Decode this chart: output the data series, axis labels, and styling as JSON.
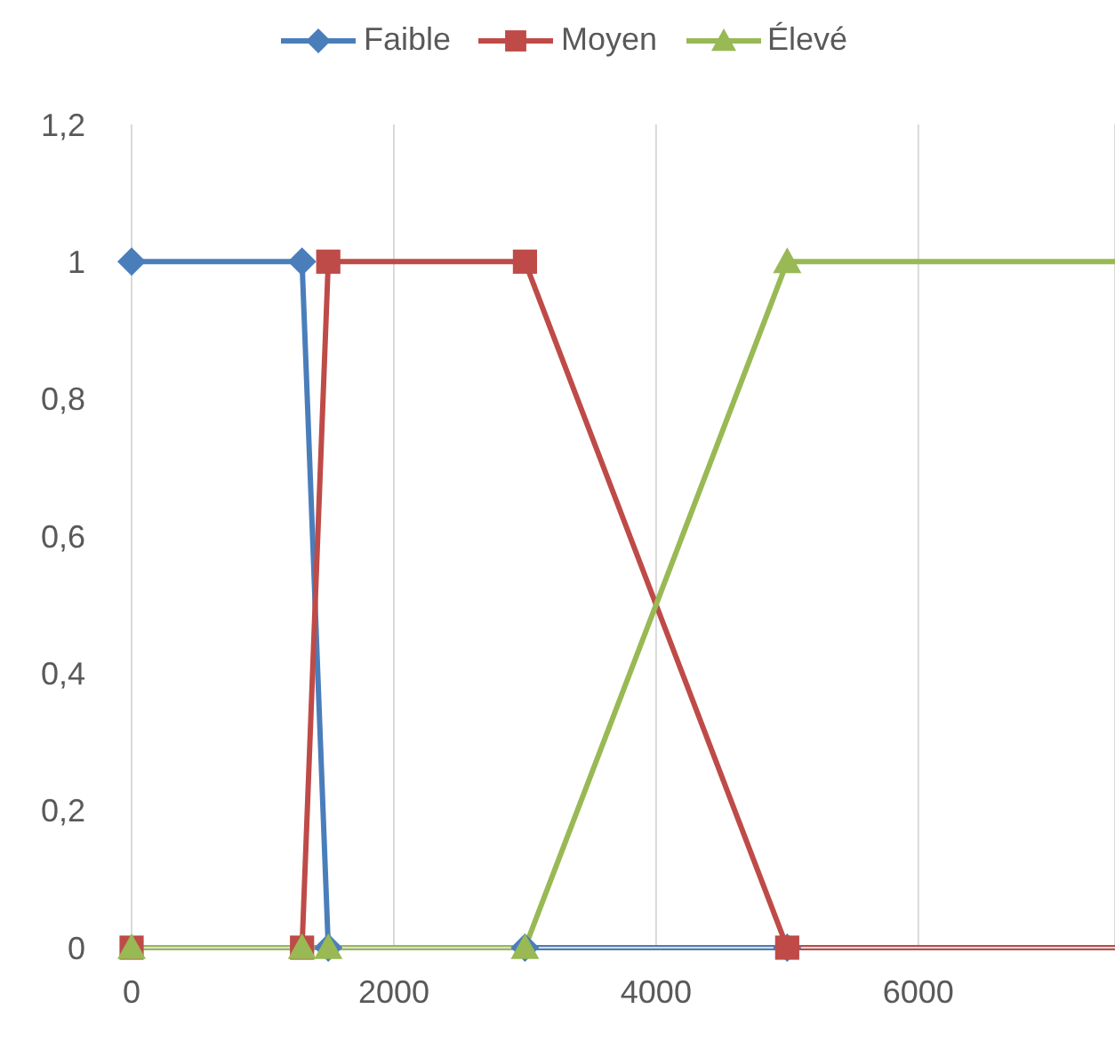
{
  "chart_data": {
    "type": "line",
    "x": [
      0,
      1300,
      1500,
      3000,
      5000,
      7500
    ],
    "series": [
      {
        "name": "Faible",
        "color": "#4a7ebb",
        "marker": "diamond",
        "values": [
          1,
          1,
          0,
          0,
          0,
          0
        ]
      },
      {
        "name": "Moyen",
        "color": "#be4b48",
        "marker": "square",
        "values": [
          0,
          0,
          1,
          1,
          0,
          0
        ]
      },
      {
        "name": "Élevé",
        "color": "#98b954",
        "marker": "triangle",
        "values": [
          0,
          0,
          0,
          0,
          1,
          1
        ]
      }
    ],
    "xlim": [
      0,
      7500
    ],
    "xticks": [
      0,
      2000,
      4000,
      6000
    ],
    "ylim": [
      0,
      1.2
    ],
    "yticks": [
      0,
      {
        "value": 0.2,
        "label": "0,2"
      },
      {
        "value": 0.4,
        "label": "0,4"
      },
      {
        "value": 0.6,
        "label": "0,6"
      },
      {
        "value": 0.8,
        "label": "0,8"
      },
      1,
      {
        "value": 1.2,
        "label": "1,2"
      }
    ],
    "grid": "x",
    "legend": "top",
    "line_style": "solid"
  }
}
